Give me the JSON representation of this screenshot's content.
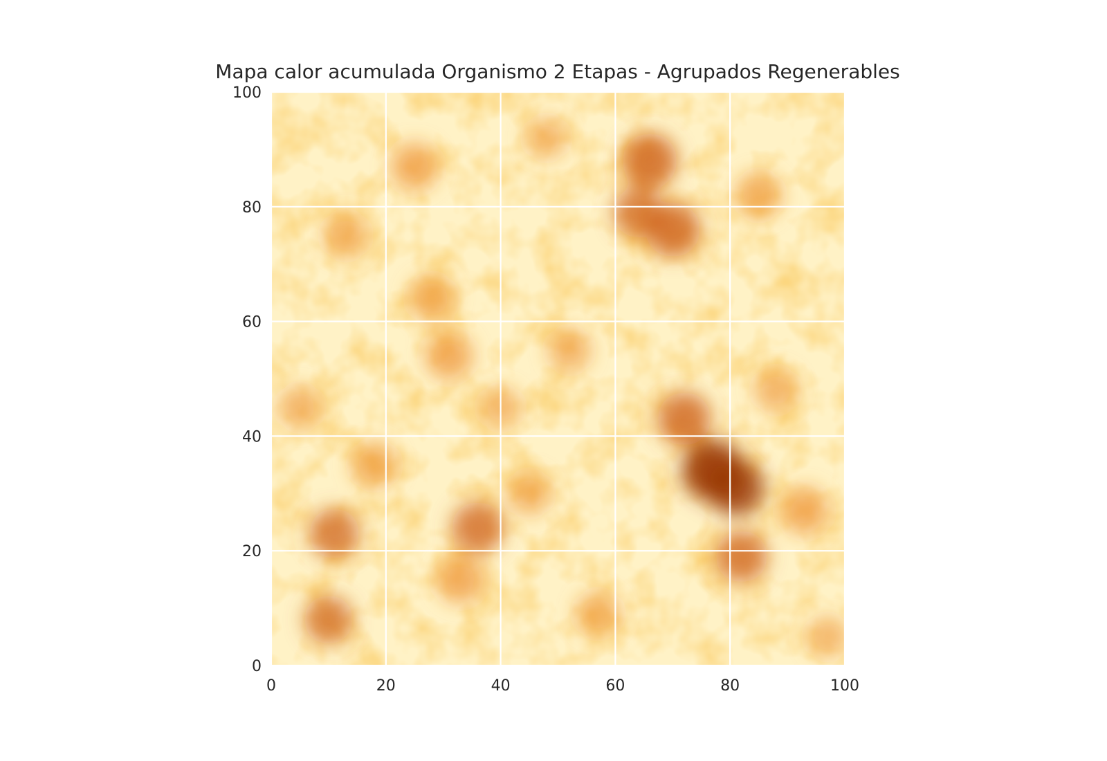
{
  "chart_data": {
    "type": "heatmap",
    "title": "Mapa calor acumulada Organismo 2 Etapas - Agrupados Regenerables",
    "xlabel": "",
    "ylabel": "",
    "xlim": [
      0,
      100
    ],
    "ylim": [
      0,
      100
    ],
    "x_ticks": [
      0,
      20,
      40,
      60,
      80,
      100
    ],
    "y_ticks": [
      0,
      20,
      40,
      60,
      80,
      100
    ],
    "x_tick_labels": [
      "0",
      "20",
      "40",
      "60",
      "80",
      "100"
    ],
    "y_tick_labels": [
      "0",
      "20",
      "40",
      "60",
      "80",
      "100"
    ],
    "grid": true,
    "grid_color": "#ffffff",
    "colormap": "YlOrBr",
    "color_low": "#ffffe5",
    "color_mid": "#fec44f",
    "color_high": "#993404",
    "hotspots": [
      {
        "x": 77,
        "y": 34,
        "intensity": 1.0
      },
      {
        "x": 81,
        "y": 31,
        "intensity": 0.85
      },
      {
        "x": 72,
        "y": 43,
        "intensity": 0.75
      },
      {
        "x": 82,
        "y": 19,
        "intensity": 0.7
      },
      {
        "x": 66,
        "y": 88,
        "intensity": 0.8
      },
      {
        "x": 70,
        "y": 76,
        "intensity": 0.8
      },
      {
        "x": 64,
        "y": 79,
        "intensity": 0.65
      },
      {
        "x": 36,
        "y": 24,
        "intensity": 0.7
      },
      {
        "x": 11,
        "y": 23,
        "intensity": 0.65
      },
      {
        "x": 10,
        "y": 8,
        "intensity": 0.6
      },
      {
        "x": 33,
        "y": 15,
        "intensity": 0.55
      },
      {
        "x": 31,
        "y": 54,
        "intensity": 0.55
      },
      {
        "x": 25,
        "y": 87,
        "intensity": 0.55
      },
      {
        "x": 28,
        "y": 64,
        "intensity": 0.5
      },
      {
        "x": 93,
        "y": 27,
        "intensity": 0.55
      },
      {
        "x": 85,
        "y": 82,
        "intensity": 0.5
      },
      {
        "x": 57,
        "y": 9,
        "intensity": 0.45
      },
      {
        "x": 18,
        "y": 35,
        "intensity": 0.5
      },
      {
        "x": 13,
        "y": 75,
        "intensity": 0.45
      },
      {
        "x": 52,
        "y": 55,
        "intensity": 0.4
      },
      {
        "x": 45,
        "y": 30,
        "intensity": 0.4
      },
      {
        "x": 88,
        "y": 48,
        "intensity": 0.4
      },
      {
        "x": 5,
        "y": 45,
        "intensity": 0.4
      },
      {
        "x": 97,
        "y": 5,
        "intensity": 0.35
      },
      {
        "x": 48,
        "y": 92,
        "intensity": 0.35
      },
      {
        "x": 40,
        "y": 45,
        "intensity": 0.35
      }
    ]
  }
}
